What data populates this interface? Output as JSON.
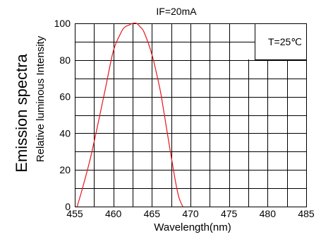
{
  "chart_data": {
    "type": "line",
    "title": "IF=20mA",
    "xlabel": "Wavelength(nm)",
    "ylabel": "Relative luminous Intensity",
    "ylabel_outer": "Emission spectra",
    "annotation": "T=25℃",
    "xlim": [
      455,
      485
    ],
    "ylim": [
      0,
      100
    ],
    "x_ticks": [
      455,
      460,
      465,
      470,
      475,
      480,
      485
    ],
    "y_ticks": [
      0,
      20,
      40,
      60,
      80,
      100
    ],
    "grid": true,
    "series": [
      {
        "color": "#e8141b",
        "x": [
          455.3,
          456.0,
          457.0,
          458.0,
          459.0,
          460.0,
          461.0,
          461.5,
          462.0,
          462.5,
          463.0,
          463.5,
          464.0,
          465.0,
          466.0,
          466.5,
          467.0,
          468.0,
          468.5,
          469.0
        ],
        "y": [
          0,
          10,
          26,
          45,
          65,
          85,
          95,
          98,
          99,
          100,
          100,
          98,
          95,
          83,
          65,
          53,
          40,
          15,
          5,
          0
        ]
      }
    ]
  }
}
